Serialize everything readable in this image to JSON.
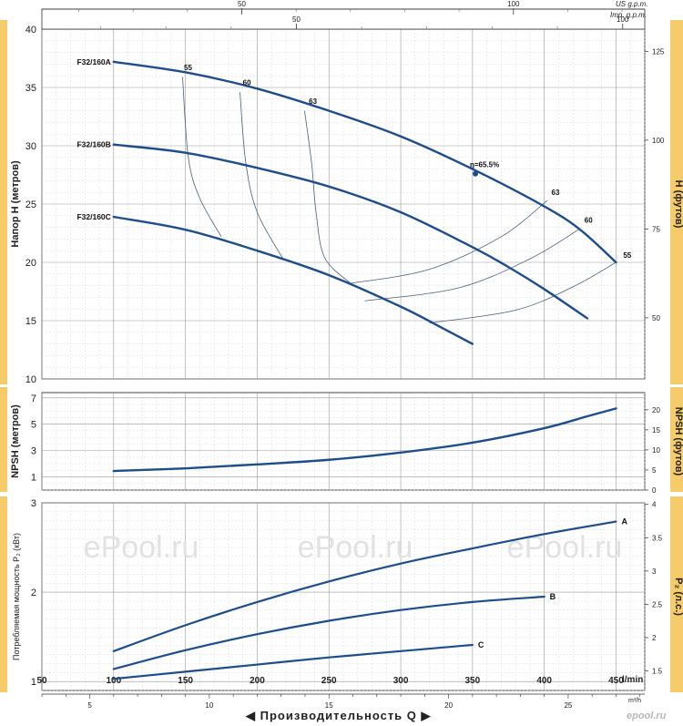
{
  "top_axes": {
    "usgpm": {
      "label": "US g.p.m.",
      "ticks": [
        50,
        100
      ]
    },
    "impgpm": {
      "label": "Imp. g.p.m.",
      "ticks": [
        50,
        100
      ]
    }
  },
  "bottom_axes": {
    "lmin": {
      "unit": "l/min",
      "ticks": [
        50,
        100,
        150,
        200,
        250,
        300,
        350,
        400,
        450
      ]
    },
    "m3h": {
      "unit": "m³/h",
      "ticks": [
        5,
        10,
        15,
        20,
        25
      ]
    },
    "title": "Производительность Q"
  },
  "watermarks": [
    "ePool.ru",
    "ePool.ru",
    "ePool.ru"
  ],
  "logo": "epool.ru",
  "chart_data": [
    {
      "type": "line",
      "panel": "head",
      "ylabel_left": "Напор H   (метров)",
      "ylabel_right": "H   (футов)",
      "xlim": [
        50,
        470
      ],
      "ylim": [
        10,
        40
      ],
      "yticks_left": [
        10,
        15,
        20,
        25,
        30,
        35,
        40
      ],
      "yticks_right": [
        50,
        75,
        100,
        125
      ],
      "series": [
        {
          "name": "F32/160A",
          "points": [
            [
              100,
              37.2
            ],
            [
              150,
              36.3
            ],
            [
              200,
              34.9
            ],
            [
              250,
              33.0
            ],
            [
              300,
              30.8
            ],
            [
              350,
              28.0
            ],
            [
              400,
              24.8
            ],
            [
              425,
              22.8
            ],
            [
              450,
              20.0
            ]
          ]
        },
        {
          "name": "F32/160B",
          "points": [
            [
              100,
              30.1
            ],
            [
              150,
              29.4
            ],
            [
              200,
              28.1
            ],
            [
              250,
              26.5
            ],
            [
              300,
              24.3
            ],
            [
              350,
              21.3
            ],
            [
              375,
              19.6
            ],
            [
              400,
              17.7
            ],
            [
              430,
              15.2
            ]
          ]
        },
        {
          "name": "F32/160C",
          "points": [
            [
              100,
              23.9
            ],
            [
              150,
              22.8
            ],
            [
              200,
              21.0
            ],
            [
              250,
              18.9
            ],
            [
              300,
              16.2
            ],
            [
              330,
              14.3
            ],
            [
              350,
              13.0
            ]
          ]
        }
      ],
      "efficiency_curves": [
        {
          "label": "55",
          "points": [
            [
              148,
              35.9
            ],
            [
              152,
              29.0
            ],
            [
              160,
              25.5
            ],
            [
              175,
              22.2
            ]
          ]
        },
        {
          "label": "60",
          "points": [
            [
              188,
              34.6
            ],
            [
              192,
              28.6
            ],
            [
              200,
              24.3
            ],
            [
              218,
              20.3
            ]
          ]
        },
        {
          "label": "63",
          "points": [
            [
              233,
              33.0
            ],
            [
              238,
              28.4
            ],
            [
              241,
              24.3
            ],
            [
              247,
              20.4
            ],
            [
              265,
              18.2
            ]
          ]
        }
      ],
      "efficiency_curves_right": [
        {
          "label": "63",
          "points": [
            [
              265,
              18.2
            ],
            [
              320,
              19.4
            ],
            [
              370,
              22.2
            ],
            [
              402,
              25.3
            ]
          ]
        },
        {
          "label": "60",
          "points": [
            [
              275,
              16.7
            ],
            [
              340,
              17.8
            ],
            [
              390,
              20.3
            ],
            [
              425,
              22.9
            ]
          ]
        },
        {
          "label": "55",
          "points": [
            [
              320,
              14.8
            ],
            [
              380,
              15.9
            ],
            [
              420,
              17.9
            ],
            [
              450,
              20.0
            ]
          ]
        }
      ],
      "efficiency_labels": [
        {
          "text": "55",
          "at": [
            149,
            36.5
          ]
        },
        {
          "text": "60",
          "at": [
            190,
            35.2
          ]
        },
        {
          "text": "63",
          "at": [
            236,
            33.6
          ]
        },
        {
          "text": "63",
          "at": [
            405,
            25.8
          ]
        },
        {
          "text": "60",
          "at": [
            428,
            23.4
          ]
        },
        {
          "text": "55",
          "at": [
            455,
            20.4
          ]
        }
      ],
      "best_efficiency_point": {
        "label": "η=65.5%",
        "x": 352,
        "y": 27.6
      }
    },
    {
      "type": "line",
      "panel": "npsh",
      "ylabel_left": "NPSH   (метров)",
      "ylabel_right": "NPSH   (футов)",
      "xlim": [
        50,
        470
      ],
      "ylim": [
        0,
        7.4
      ],
      "yticks_left": [
        1,
        3,
        5,
        7
      ],
      "yticks_right": [
        0,
        5,
        10,
        15,
        20
      ],
      "series": [
        {
          "name": "NPSH",
          "points": [
            [
              100,
              1.45
            ],
            [
              150,
              1.65
            ],
            [
              200,
              1.95
            ],
            [
              250,
              2.3
            ],
            [
              300,
              2.85
            ],
            [
              350,
              3.6
            ],
            [
              400,
              4.7
            ],
            [
              430,
              5.6
            ],
            [
              450,
              6.2
            ]
          ]
        }
      ]
    },
    {
      "type": "line",
      "panel": "power",
      "ylabel_left": "Потребляемая мощность P₂ (кВт)",
      "ylabel_right": "P₂ (л.с.)",
      "xlim": [
        50,
        470
      ],
      "ylim": [
        0.9,
        3.0
      ],
      "yticks_left": [
        1,
        2,
        3
      ],
      "yticks_right": [
        1.5,
        2.0,
        2.5,
        3.0,
        3.5,
        4
      ],
      "series": [
        {
          "name": "A",
          "points": [
            [
              100,
              1.34
            ],
            [
              150,
              1.63
            ],
            [
              200,
              1.89
            ],
            [
              250,
              2.12
            ],
            [
              300,
              2.32
            ],
            [
              350,
              2.49
            ],
            [
              400,
              2.65
            ],
            [
              450,
              2.79
            ]
          ]
        },
        {
          "name": "B",
          "points": [
            [
              100,
              1.14
            ],
            [
              150,
              1.35
            ],
            [
              200,
              1.53
            ],
            [
              250,
              1.68
            ],
            [
              300,
              1.8
            ],
            [
              350,
              1.89
            ],
            [
              400,
              1.95
            ]
          ]
        },
        {
          "name": "C",
          "points": [
            [
              100,
              1.03
            ],
            [
              150,
              1.11
            ],
            [
              200,
              1.19
            ],
            [
              250,
              1.27
            ],
            [
              300,
              1.34
            ],
            [
              350,
              1.41
            ]
          ]
        }
      ]
    }
  ]
}
